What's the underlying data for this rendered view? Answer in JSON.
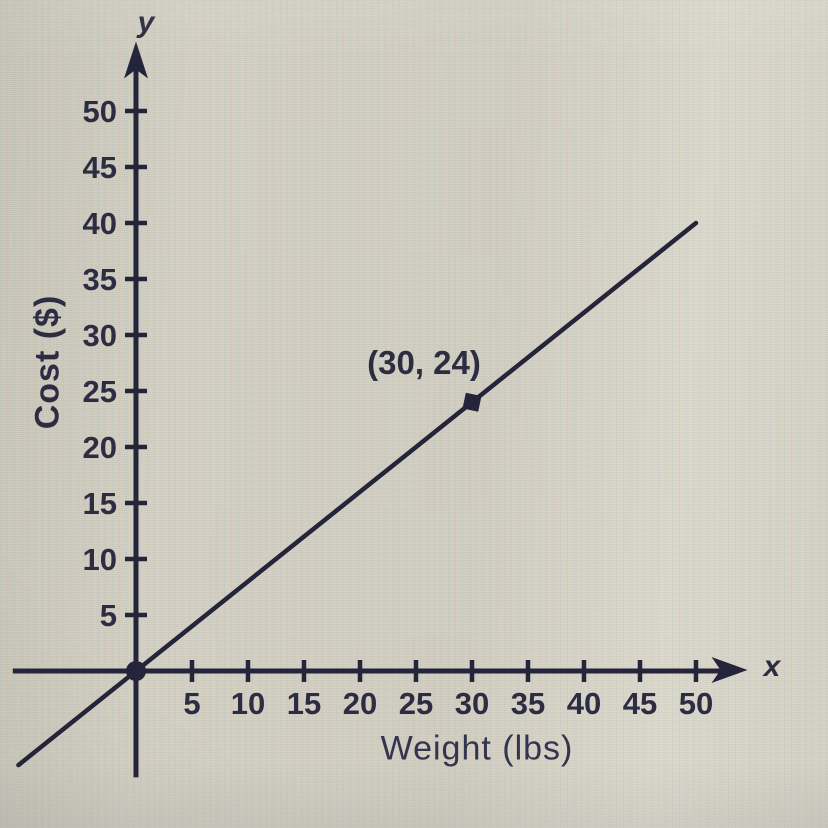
{
  "figure": {
    "description": "Photographed line graph of shipping cost versus weight",
    "ink_color": "#24243a",
    "paper_color": "#d3d0c3"
  },
  "chart_data": {
    "type": "line",
    "title": "",
    "xlabel": "Weight (lbs)",
    "ylabel": "Cost ($)",
    "x_axis_letter": "x",
    "y_axis_letter": "y",
    "x_ticks": [
      5,
      10,
      15,
      20,
      25,
      30,
      35,
      40,
      45,
      50
    ],
    "y_ticks": [
      5,
      10,
      15,
      20,
      25,
      30,
      35,
      40,
      45,
      50
    ],
    "xlim": [
      -11,
      55
    ],
    "ylim": [
      -9.5,
      56
    ],
    "grid": false,
    "legend": null,
    "line": {
      "slope": 0.8,
      "intercept": 0,
      "x_start": -10.5,
      "x_end": 50
    },
    "points": [
      {
        "x": 0,
        "y": 0,
        "marker": "circle",
        "label": ""
      },
      {
        "x": 30,
        "y": 24,
        "marker": "square",
        "label": "(30, 24)"
      }
    ]
  }
}
